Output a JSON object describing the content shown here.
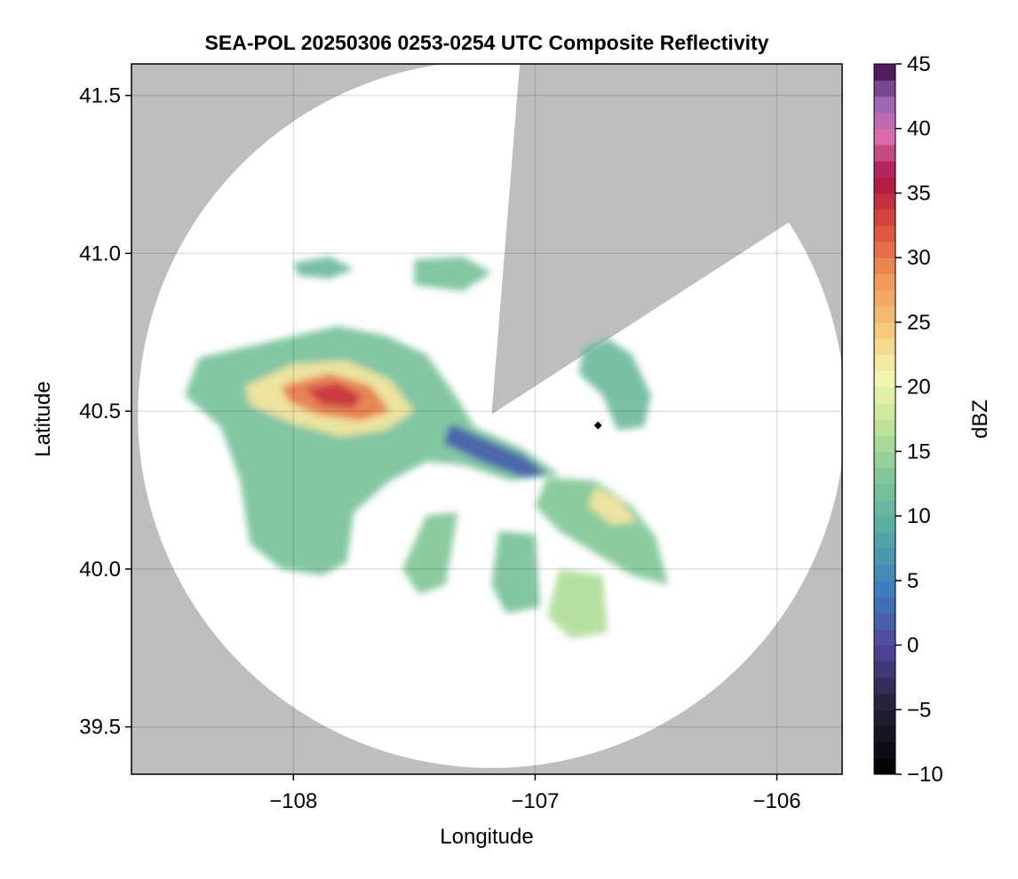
{
  "chart_data": {
    "type": "heatmap",
    "title": "SEA-POL 20250306 0253-0254 UTC Composite Reflectivity",
    "xlabel": "Longitude",
    "ylabel": "Latitude",
    "xlim": [
      -108.67,
      -105.73
    ],
    "ylim": [
      39.35,
      41.6
    ],
    "xticks": [
      -108,
      -107,
      -106
    ],
    "xtick_labels": [
      "−108",
      "−107",
      "−106"
    ],
    "yticks": [
      39.5,
      40.0,
      40.5,
      41.0,
      41.5
    ],
    "ytick_labels": [
      "39.5",
      "40.0",
      "40.5",
      "41.0",
      "41.5"
    ],
    "grid": true,
    "background_color": "#bebebe",
    "coverage_color": "#ffffff",
    "radar": {
      "lon": -107.18,
      "lat": 40.49,
      "max_range_lat_deg": 1.12,
      "blocked_sector_deg": [
        0,
        60
      ]
    },
    "marker": {
      "lon": -106.74,
      "lat": 40.455,
      "shape": "diamond",
      "color": "#000000"
    },
    "colorbar": {
      "label": "dBZ",
      "min": -10,
      "max": 45,
      "ticks": [
        -10,
        -5,
        0,
        5,
        10,
        15,
        20,
        25,
        30,
        35,
        40,
        45
      ],
      "tick_labels": [
        "−10",
        "−5",
        "0",
        "5",
        "10",
        "15",
        "20",
        "25",
        "30",
        "35",
        "40",
        "45"
      ],
      "colormap": "Spectral_r"
    },
    "echo_regions": [
      {
        "name": "northwest-main-echo",
        "dbz": 12,
        "polygon": [
          [
            -108.39,
            40.67
          ],
          [
            -108.1,
            40.72
          ],
          [
            -107.82,
            40.77
          ],
          [
            -107.62,
            40.74
          ],
          [
            -107.45,
            40.68
          ],
          [
            -107.33,
            40.55
          ],
          [
            -107.25,
            40.45
          ],
          [
            -107.05,
            40.38
          ],
          [
            -106.9,
            40.3
          ],
          [
            -107.1,
            40.28
          ],
          [
            -107.3,
            40.33
          ],
          [
            -107.45,
            40.34
          ],
          [
            -107.6,
            40.28
          ],
          [
            -107.75,
            40.18
          ],
          [
            -107.78,
            40.02
          ],
          [
            -107.88,
            39.98
          ],
          [
            -108.05,
            40.0
          ],
          [
            -108.18,
            40.08
          ],
          [
            -108.22,
            40.28
          ],
          [
            -108.3,
            40.45
          ],
          [
            -108.45,
            40.55
          ]
        ]
      },
      {
        "name": "northwest-core-moderate",
        "dbz": 22,
        "polygon": [
          [
            -108.2,
            40.58
          ],
          [
            -108.0,
            40.65
          ],
          [
            -107.78,
            40.66
          ],
          [
            -107.6,
            40.6
          ],
          [
            -107.5,
            40.5
          ],
          [
            -107.62,
            40.44
          ],
          [
            -107.8,
            40.42
          ],
          [
            -108.0,
            40.46
          ],
          [
            -108.18,
            40.52
          ]
        ]
      },
      {
        "name": "northwest-core-strong",
        "dbz": 30,
        "polygon": [
          [
            -108.05,
            40.58
          ],
          [
            -107.85,
            40.62
          ],
          [
            -107.68,
            40.58
          ],
          [
            -107.6,
            40.5
          ],
          [
            -107.72,
            40.47
          ],
          [
            -107.9,
            40.49
          ],
          [
            -108.02,
            40.53
          ]
        ]
      },
      {
        "name": "northwest-core-peak",
        "dbz": 34,
        "polygon": [
          [
            -107.95,
            40.57
          ],
          [
            -107.82,
            40.59
          ],
          [
            -107.72,
            40.55
          ],
          [
            -107.75,
            40.51
          ],
          [
            -107.88,
            40.52
          ]
        ]
      },
      {
        "name": "north-fragments",
        "dbz": 11,
        "polygon": [
          [
            -108.0,
            40.97
          ],
          [
            -107.85,
            40.99
          ],
          [
            -107.75,
            40.95
          ],
          [
            -107.85,
            40.92
          ],
          [
            -107.98,
            40.93
          ]
        ]
      },
      {
        "name": "north-fragments-2",
        "dbz": 12,
        "polygon": [
          [
            -107.5,
            40.98
          ],
          [
            -107.3,
            40.99
          ],
          [
            -107.18,
            40.94
          ],
          [
            -107.3,
            40.88
          ],
          [
            -107.5,
            40.9
          ]
        ]
      },
      {
        "name": "east-edge-band",
        "dbz": 2,
        "polygon": [
          [
            -107.35,
            40.46
          ],
          [
            -107.2,
            40.41
          ],
          [
            -107.05,
            40.36
          ],
          [
            -106.95,
            40.3
          ],
          [
            -107.05,
            40.29
          ],
          [
            -107.22,
            40.34
          ],
          [
            -107.38,
            40.4
          ]
        ]
      },
      {
        "name": "southeast-echo",
        "dbz": 13,
        "polygon": [
          [
            -106.95,
            40.29
          ],
          [
            -106.75,
            40.28
          ],
          [
            -106.6,
            40.2
          ],
          [
            -106.5,
            40.1
          ],
          [
            -106.45,
            39.95
          ],
          [
            -106.6,
            39.98
          ],
          [
            -106.75,
            40.05
          ],
          [
            -106.9,
            40.12
          ],
          [
            -107.0,
            40.2
          ]
        ]
      },
      {
        "name": "southeast-moderate",
        "dbz": 22,
        "polygon": [
          [
            -106.75,
            40.26
          ],
          [
            -106.65,
            40.22
          ],
          [
            -106.58,
            40.15
          ],
          [
            -106.68,
            40.14
          ],
          [
            -106.78,
            40.2
          ]
        ]
      },
      {
        "name": "south-spoke-1",
        "dbz": 13,
        "polygon": [
          [
            -107.45,
            40.17
          ],
          [
            -107.32,
            40.18
          ],
          [
            -107.37,
            39.95
          ],
          [
            -107.48,
            39.92
          ],
          [
            -107.55,
            40.0
          ]
        ]
      },
      {
        "name": "south-spoke-2",
        "dbz": 12,
        "polygon": [
          [
            -107.15,
            40.12
          ],
          [
            -107.0,
            40.11
          ],
          [
            -106.98,
            39.88
          ],
          [
            -107.12,
            39.86
          ],
          [
            -107.18,
            39.95
          ]
        ]
      },
      {
        "name": "south-spoke-3",
        "dbz": 16,
        "polygon": [
          [
            -106.9,
            40.0
          ],
          [
            -106.72,
            39.98
          ],
          [
            -106.7,
            39.8
          ],
          [
            -106.85,
            39.78
          ],
          [
            -106.95,
            39.85
          ]
        ]
      },
      {
        "name": "northeast-cell",
        "dbz": 11,
        "polygon": [
          [
            -106.8,
            40.7
          ],
          [
            -106.7,
            40.73
          ],
          [
            -106.6,
            40.68
          ],
          [
            -106.52,
            40.55
          ],
          [
            -106.55,
            40.45
          ],
          [
            -106.66,
            40.44
          ],
          [
            -106.72,
            40.55
          ],
          [
            -106.82,
            40.62
          ]
        ]
      }
    ]
  }
}
